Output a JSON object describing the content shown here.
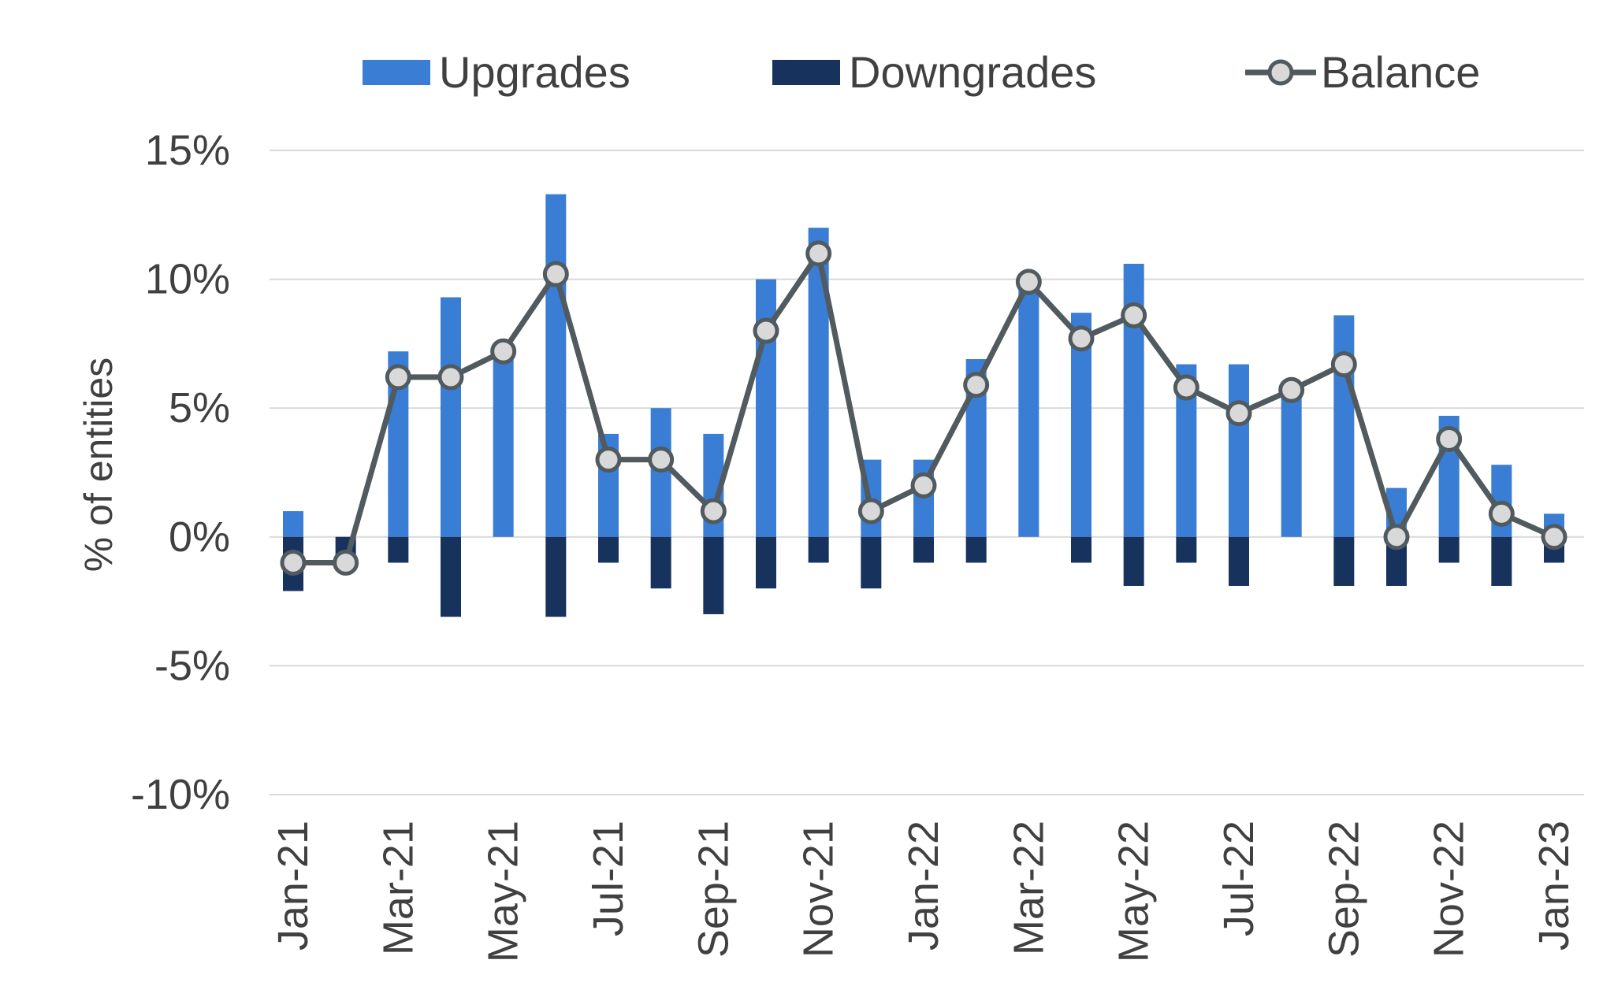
{
  "chart_data": {
    "type": "bar",
    "categories": [
      "Jan-21",
      "Feb-21",
      "Mar-21",
      "Apr-21",
      "May-21",
      "Jun-21",
      "Jul-21",
      "Aug-21",
      "Sep-21",
      "Oct-21",
      "Nov-21",
      "Dec-21",
      "Jan-22",
      "Feb-22",
      "Mar-22",
      "Apr-22",
      "May-22",
      "Jun-22",
      "Jul-22",
      "Aug-22",
      "Sep-22",
      "Oct-22",
      "Nov-22",
      "Dec-22",
      "Jan-23"
    ],
    "x_tick_labels": [
      "Jan-21",
      "",
      "Mar-21",
      "",
      "May-21",
      "",
      "Jul-21",
      "",
      "Sep-21",
      "",
      "Nov-21",
      "",
      "Jan-22",
      "",
      "Mar-22",
      "",
      "May-22",
      "",
      "Jul-22",
      "",
      "Sep-22",
      "",
      "Nov-22",
      "",
      "Jan-23"
    ],
    "series": [
      {
        "name": "Upgrades",
        "kind": "bar",
        "color": "#3A7DD4",
        "values": [
          1.0,
          0,
          7.2,
          9.3,
          7.2,
          13.3,
          4.0,
          5.0,
          4.0,
          10.0,
          12.0,
          3.0,
          3.0,
          6.9,
          10.0,
          8.7,
          10.6,
          6.7,
          6.7,
          5.7,
          8.6,
          1.9,
          4.7,
          2.8,
          0.9
        ]
      },
      {
        "name": "Downgrades",
        "kind": "bar",
        "color": "#17325C",
        "values": [
          -2.1,
          -1.0,
          -1.0,
          -3.1,
          0,
          -3.1,
          -1.0,
          -2.0,
          -3.0,
          -2.0,
          -1.0,
          -2.0,
          -1.0,
          -1.0,
          0,
          -1.0,
          -1.9,
          -1.0,
          -1.9,
          0,
          -1.9,
          -1.9,
          -1.0,
          -1.9,
          -1.0
        ]
      },
      {
        "name": "Balance",
        "kind": "line",
        "color": "#505A5F",
        "marker_fill": "#D9D9D9",
        "values": [
          -1.0,
          -1.0,
          6.2,
          6.2,
          7.2,
          10.2,
          3.0,
          3.0,
          1.0,
          8.0,
          11.0,
          1.0,
          2.0,
          5.9,
          9.9,
          7.7,
          8.6,
          5.8,
          4.8,
          5.7,
          6.7,
          0.0,
          3.8,
          0.9,
          0.0
        ]
      }
    ],
    "title": "",
    "xlabel": "",
    "ylabel": "% of entities",
    "ylim": [
      -10,
      15
    ],
    "y_ticks": [
      15,
      10,
      5,
      0,
      -5,
      -10
    ],
    "y_tick_labels": [
      "15%",
      "10%",
      "5%",
      "0%",
      "-5%",
      "-10%"
    ],
    "grid": true,
    "legend_position": "top"
  }
}
